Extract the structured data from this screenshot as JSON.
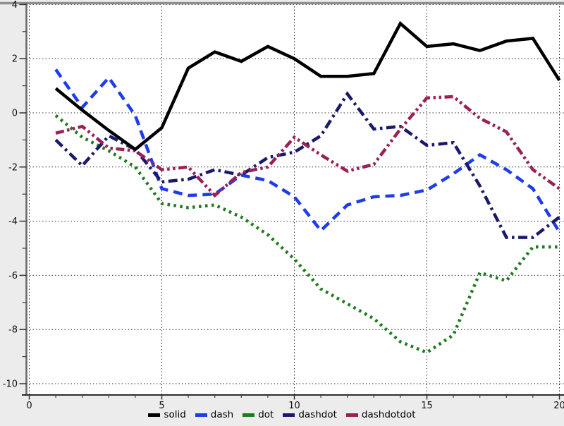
{
  "chart_data": {
    "type": "line",
    "title": "",
    "xlabel": "",
    "ylabel": "",
    "xlim": [
      -0.12,
      20.17
    ],
    "ylim": [
      -10.42,
      4.06
    ],
    "x_major_ticks": [
      0,
      5,
      10,
      15,
      20
    ],
    "x_minor_tick_step": 1,
    "y_major_ticks": [
      4,
      2,
      0,
      -2,
      -4,
      -6,
      -8,
      -10
    ],
    "y_minor_tick_step": 1,
    "x_tick_labels": [
      "0",
      "5",
      "10",
      "15",
      "20"
    ],
    "y_tick_labels": [
      "4",
      "2",
      "0",
      "-2",
      "-4",
      "-6",
      "-8",
      "-10"
    ],
    "grid": "dotted-at-major-ticks",
    "legend_position": "bottom-center",
    "x": [
      1,
      2,
      3,
      4,
      5,
      6,
      7,
      8,
      9,
      10,
      11,
      12,
      13,
      14,
      15,
      16,
      17,
      18,
      19,
      20
    ],
    "series": [
      {
        "name": "dot",
        "color": "#1F7A1F",
        "dash_style": "dot",
        "values": [
          -0.1,
          -0.9,
          -1.4,
          -2.0,
          -3.35,
          -3.5,
          -3.4,
          -3.85,
          -4.5,
          -5.4,
          -6.5,
          -7.05,
          -7.6,
          -8.45,
          -8.85,
          -8.2,
          -5.9,
          -6.2,
          -4.95,
          -4.95
        ]
      },
      {
        "name": "dash",
        "color": "#1D3DEB",
        "dash_style": "dash",
        "values": [
          1.6,
          0.2,
          1.3,
          -0.1,
          -2.8,
          -3.05,
          -3.0,
          -2.3,
          -2.5,
          -3.1,
          -4.35,
          -3.4,
          -3.1,
          -3.05,
          -2.85,
          -2.25,
          -1.55,
          -2.1,
          -2.8,
          -4.4
        ]
      },
      {
        "name": "dashdot",
        "color": "#1A1A6B",
        "dash_style": "dashdot",
        "values": [
          -1.0,
          -1.95,
          -0.85,
          -1.35,
          -2.55,
          -2.45,
          -2.1,
          -2.3,
          -1.65,
          -1.45,
          -0.85,
          0.7,
          -0.6,
          -0.5,
          -1.2,
          -1.1,
          -2.7,
          -4.6,
          -4.6,
          -3.85
        ]
      },
      {
        "name": "dashdotdot",
        "color": "#9A2055",
        "dash_style": "dashdotdot",
        "values": [
          -0.75,
          -0.5,
          -1.3,
          -1.4,
          -2.1,
          -2.0,
          -3.05,
          -2.2,
          -2.0,
          -0.9,
          -1.55,
          -2.15,
          -1.9,
          -0.6,
          0.55,
          0.6,
          -0.2,
          -0.7,
          -2.1,
          -2.8
        ]
      },
      {
        "name": "solid",
        "color": "#000000",
        "dash_style": "solid",
        "values": [
          0.9,
          0.1,
          -0.65,
          -1.35,
          -0.55,
          1.65,
          2.25,
          1.9,
          2.45,
          2.0,
          1.35,
          1.35,
          1.45,
          3.3,
          2.45,
          2.55,
          2.3,
          2.65,
          2.75,
          1.2
        ]
      }
    ]
  },
  "legend": {
    "items": [
      {
        "label": "solid",
        "color": "#000000"
      },
      {
        "label": "dash",
        "color": "#1D3DEB"
      },
      {
        "label": "dot",
        "color": "#1F7A1F"
      },
      {
        "label": "dashdot",
        "color": "#1A1A6B"
      },
      {
        "label": "dashdotdot",
        "color": "#9A2055"
      }
    ]
  },
  "style": {
    "background": "#ececec",
    "plot_background": "#ffffff",
    "grid_color": "#2a2a2a",
    "top_frame_color": "#8f8f8f",
    "y_axis_color": "#6a6a6a",
    "x_axis_color": "#111111"
  }
}
